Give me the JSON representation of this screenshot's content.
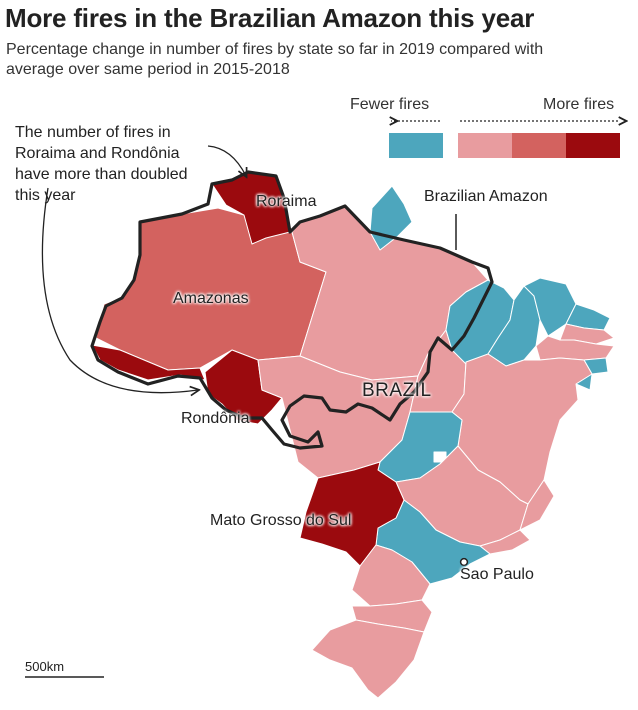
{
  "title": "More fires in the Brazilian Amazon this year",
  "subtitle": "Percentage change in number of fires by state so far in 2019 compared with average over same period in 2015-2018",
  "legend": {
    "fewer_label": "Fewer fires",
    "more_label": "More fires",
    "colors": {
      "fewer": "#4da6bd",
      "more_low": "#e89c9f",
      "more_mid": "#d3625f",
      "more_high": "#9b0a0e"
    }
  },
  "annotation": "The number of fires in Roraima and Rondônia have more than doubled this year",
  "labels": {
    "roraima": "Roraima",
    "amazonas": "Amazonas",
    "rondonia": "Rondônia",
    "mato_grosso_do_sul": "Mato Grosso do Sul",
    "brazilian_amazon": "Brazilian Amazon",
    "brazil": "BRAZIL",
    "sao_paulo": "Sao Paulo"
  },
  "scale_label": "500km"
}
